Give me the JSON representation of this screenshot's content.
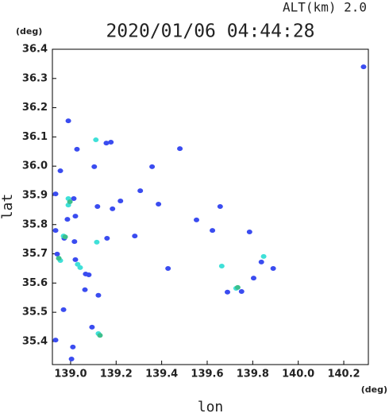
{
  "chart_data": {
    "type": "scatter",
    "title": "2020/01/06 04:44:28",
    "subtitle": "ALT(km) 2.0",
    "x_label": "lon",
    "y_label": "lat",
    "x_unit": "(deg)",
    "y_unit": "(deg)",
    "xlim": [
      138.92,
      140.308
    ],
    "ylim": [
      35.321,
      36.4
    ],
    "xticks": [
      {
        "value": 139,
        "label": "139.0"
      },
      139.2,
      139.4,
      139.6,
      139.8,
      {
        "value": 140,
        "label": "140.0"
      },
      140.2
    ],
    "yticks": [
      35.4,
      35.5,
      35.6,
      35.7,
      35.8,
      35.9,
      {
        "value": 36,
        "label": "36.0"
      },
      36.1,
      36.2,
      36.3,
      36.4
    ],
    "series": [
      {
        "color": "#3a4cf0",
        "x": [
          140.287,
          138.99,
          139.028,
          139.104,
          138.955,
          139.48,
          139.157,
          139.177,
          139.358,
          139.306,
          138.934,
          139.014,
          139.118,
          139.219,
          139.021,
          138.986,
          138.934,
          138.972,
          139.017,
          139.282,
          139.16,
          138.941,
          139.021,
          139.066,
          139.08,
          139.063,
          139.122,
          138.969,
          139.094,
          139.01,
          139.004,
          138.934,
          139.428,
          139.838,
          139.804,
          139.89,
          139.657,
          139.553,
          139.623,
          139.786,
          139.751,
          139.689,
          139.386,
          139.184
        ],
        "y": [
          36.34,
          36.155,
          36.058,
          35.998,
          35.984,
          36.06,
          36.079,
          36.082,
          35.998,
          35.916,
          35.905,
          35.889,
          35.862,
          35.881,
          35.829,
          35.818,
          35.78,
          35.753,
          35.742,
          35.761,
          35.753,
          35.699,
          35.68,
          35.631,
          35.628,
          35.577,
          35.558,
          35.509,
          35.449,
          35.381,
          35.34,
          35.405,
          35.65,
          35.672,
          35.617,
          35.65,
          35.862,
          35.816,
          35.78,
          35.775,
          35.571,
          35.569,
          35.87,
          35.854
        ]
      },
      {
        "color": "#3fe0d8",
        "x": [
          138.99,
          138.99,
          138.955,
          139.031,
          139.115,
          139.122,
          139.848,
          139.727,
          139.664,
          139.111,
          138.969,
          139.042
        ],
        "y": [
          35.889,
          35.867,
          35.677,
          35.664,
          35.74,
          35.427,
          35.691,
          35.582,
          35.658,
          36.09,
          35.761,
          35.653
        ]
      },
      {
        "color": "#3cbf8c",
        "x": [
          138.976,
          138.948,
          138.997,
          139.129,
          139.734
        ],
        "y": [
          35.758,
          35.685,
          35.878,
          35.421,
          35.585
        ]
      }
    ]
  }
}
